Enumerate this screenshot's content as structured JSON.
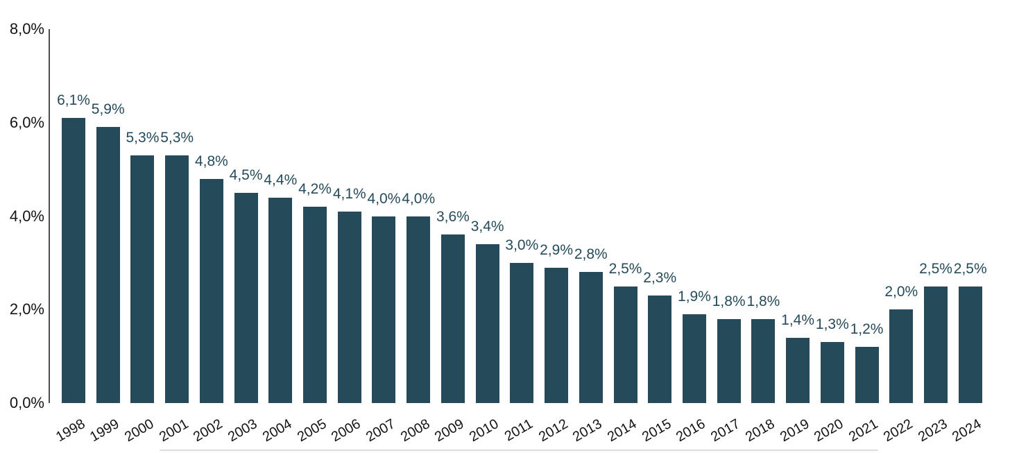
{
  "chart_data": {
    "type": "bar",
    "title": "",
    "xlabel": "",
    "ylabel": "",
    "categories": [
      "1998",
      "1999",
      "2000",
      "2001",
      "2002",
      "2003",
      "2004",
      "2005",
      "2006",
      "2007",
      "2008",
      "2009",
      "2010",
      "2011",
      "2012",
      "2013",
      "2014",
      "2015",
      "2016",
      "2017",
      "2018",
      "2019",
      "2020",
      "2021",
      "2022",
      "2023",
      "2024"
    ],
    "values": [
      6.1,
      5.9,
      5.3,
      5.3,
      4.8,
      4.5,
      4.4,
      4.2,
      4.1,
      4.0,
      4.0,
      3.6,
      3.4,
      3.0,
      2.9,
      2.8,
      2.5,
      2.3,
      1.9,
      1.8,
      1.8,
      1.4,
      1.3,
      1.2,
      2.0,
      2.5,
      2.5
    ],
    "value_labels": [
      "6,1%",
      "5,9%",
      "5,3%",
      "5,3%",
      "4,8%",
      "4,5%",
      "4,4%",
      "4,2%",
      "4,1%",
      "4,0%",
      "4,0%",
      "3,6%",
      "3,4%",
      "3,0%",
      "2,9%",
      "2,8%",
      "2,5%",
      "2,3%",
      "1,9%",
      "1,8%",
      "1,8%",
      "1,4%",
      "1,3%",
      "1,2%",
      "2,0%",
      "2,5%",
      "2,5%"
    ],
    "ylim": [
      0,
      8
    ],
    "yticks": [
      {
        "value": 8,
        "label": "8,0%"
      },
      {
        "value": 6,
        "label": "6,0%"
      },
      {
        "value": 4,
        "label": "4,0%"
      },
      {
        "value": 2,
        "label": "2,0%"
      },
      {
        "value": 0,
        "label": "0,0%"
      }
    ],
    "grid": false,
    "legend": false,
    "decimal_separator": ",",
    "colors": {
      "bar": "#254B5A",
      "value_label": "#254B5A",
      "axis_text": "#141414",
      "axis_line": "#4D4D4D",
      "background": "#FFFFFF",
      "bottom_divider": "#DCDCDC"
    }
  }
}
